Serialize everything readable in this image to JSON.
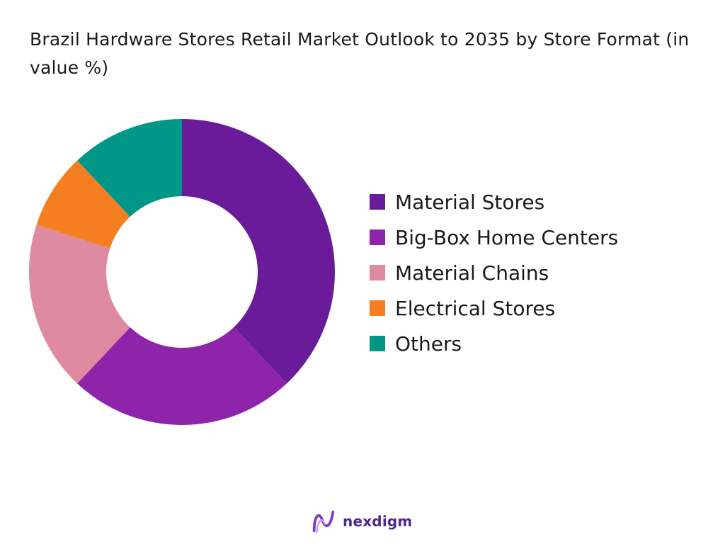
{
  "chart_data": {
    "type": "pie",
    "variant": "donut",
    "title": "Brazil Hardware Stores Retail Market Outlook to 2035 by Store Format (in value %)",
    "categories": [
      "Material Stores",
      "Big-Box Home Centers",
      "Material Chains",
      "Electrical Stores",
      "Others"
    ],
    "values": [
      38,
      24,
      18,
      8,
      12
    ],
    "colors": [
      "#6a1b9a",
      "#8e24aa",
      "#de8aa0",
      "#f57f20",
      "#009688"
    ],
    "legend_position": "right"
  },
  "brand": {
    "name": "nexdigm",
    "icon": "nexdigm-logo-icon"
  }
}
